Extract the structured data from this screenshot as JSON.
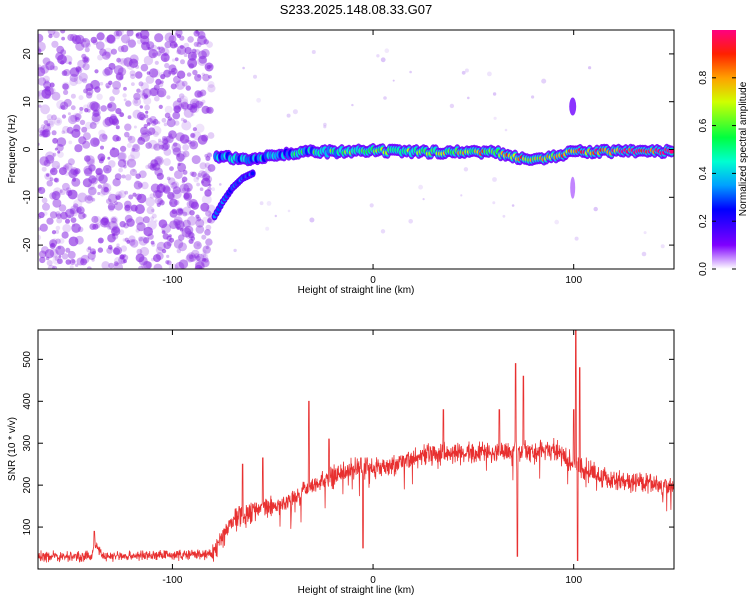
{
  "title": "S233.2025.148.08.33.G07",
  "colors": {
    "snr_line": "#e83030",
    "axis": "#000000",
    "background": "#ffffff"
  },
  "chart_data": [
    {
      "type": "heatmap",
      "xlabel": "Height of straight line (km)",
      "ylabel": "Frequency (Hz)",
      "xlim": [
        -167,
        150
      ],
      "ylim": [
        -25,
        25
      ],
      "x_ticks": [
        -100,
        0,
        100
      ],
      "y_ticks": [
        -20,
        -10,
        0,
        10,
        20
      ],
      "x_tick_labels": [
        "-100",
        "0",
        "100"
      ],
      "y_tick_labels": [
        "-20",
        "-10",
        "0",
        "10",
        "20"
      ],
      "colorbar": {
        "label": "Normalized spectral amplitude",
        "range": [
          0.0,
          1.0
        ],
        "ticks": [
          0.0,
          0.2,
          0.4,
          0.6,
          0.8
        ],
        "tick_labels": [
          "0.0",
          "0.2",
          "0.4",
          "0.6",
          "0.8"
        ],
        "colormap": "rainbow"
      },
      "features": [
        {
          "name": "noise",
          "x_range": [
            -167,
            -80
          ],
          "y_range": [
            -25,
            25
          ],
          "amplitude": 0.1
        },
        {
          "name": "main-ridge",
          "points": [
            [
              -78,
              -1.5
            ],
            [
              -65,
              -2
            ],
            [
              -55,
              -1.5
            ],
            [
              -45,
              -1
            ],
            [
              -30,
              -0.5
            ],
            [
              -15,
              -0.5
            ],
            [
              0,
              -0.3
            ],
            [
              20,
              -0.5
            ],
            [
              40,
              -0.5
            ],
            [
              60,
              -0.5
            ],
            [
              70,
              -1.5
            ],
            [
              80,
              -2
            ],
            [
              90,
              -1.5
            ],
            [
              100,
              -0.5
            ],
            [
              120,
              -0.4
            ],
            [
              150,
              -0.4
            ]
          ],
          "amplitude_start": 0.3,
          "amplitude_end": 1.0
        },
        {
          "name": "branch",
          "points": [
            [
              -79,
              -14
            ],
            [
              -75,
              -11
            ],
            [
              -70,
              -8
            ],
            [
              -65,
              -6
            ],
            [
              -60,
              -5
            ]
          ],
          "amplitude": 0.25
        },
        {
          "name": "spike-100",
          "points": [
            [
              99.5,
              9
            ],
            [
              99.5,
              8
            ],
            [
              99.5,
              10
            ]
          ],
          "amplitude": 0.2
        }
      ]
    },
    {
      "type": "line",
      "xlabel": "Height of straight line (km)",
      "ylabel": "SNR (10 * v/v)",
      "xlim": [
        -167,
        150
      ],
      "ylim": [
        0,
        570
      ],
      "x_ticks": [
        -100,
        0,
        100
      ],
      "y_ticks": [
        100,
        200,
        300,
        400,
        500
      ],
      "x_tick_labels": [
        "-100",
        "0",
        "100"
      ],
      "y_tick_labels": [
        "100",
        "200",
        "300",
        "400",
        "500"
      ],
      "series": [
        {
          "envelope": [
            [
              -167,
              30
            ],
            [
              -140,
              30
            ],
            [
              -139,
              65
            ],
            [
              -135,
              30
            ],
            [
              -80,
              35
            ],
            [
              -70,
              120
            ],
            [
              -60,
              140
            ],
            [
              -50,
              150
            ],
            [
              -40,
              165
            ],
            [
              -30,
              200
            ],
            [
              -20,
              220
            ],
            [
              -10,
              240
            ],
            [
              0,
              245
            ],
            [
              10,
              250
            ],
            [
              20,
              265
            ],
            [
              30,
              275
            ],
            [
              40,
              275
            ],
            [
              50,
              280
            ],
            [
              60,
              280
            ],
            [
              70,
              285
            ],
            [
              80,
              280
            ],
            [
              90,
              285
            ],
            [
              100,
              250
            ],
            [
              110,
              230
            ],
            [
              120,
              210
            ],
            [
              130,
              205
            ],
            [
              140,
              200
            ],
            [
              150,
              195
            ]
          ],
          "spikes": [
            [
              -139,
              90
            ],
            [
              -65,
              250
            ],
            [
              -55,
              265
            ],
            [
              -32,
              400
            ],
            [
              -22,
              310
            ],
            [
              -6,
              265
            ],
            [
              -5,
              50
            ],
            [
              35,
              380
            ],
            [
              63,
              380
            ],
            [
              71,
              490
            ],
            [
              72,
              30
            ],
            [
              75,
              460
            ],
            [
              100,
              380
            ],
            [
              101,
              570
            ],
            [
              102,
              20
            ],
            [
              103,
              480
            ]
          ],
          "noise_amplitude": 22
        }
      ]
    }
  ]
}
